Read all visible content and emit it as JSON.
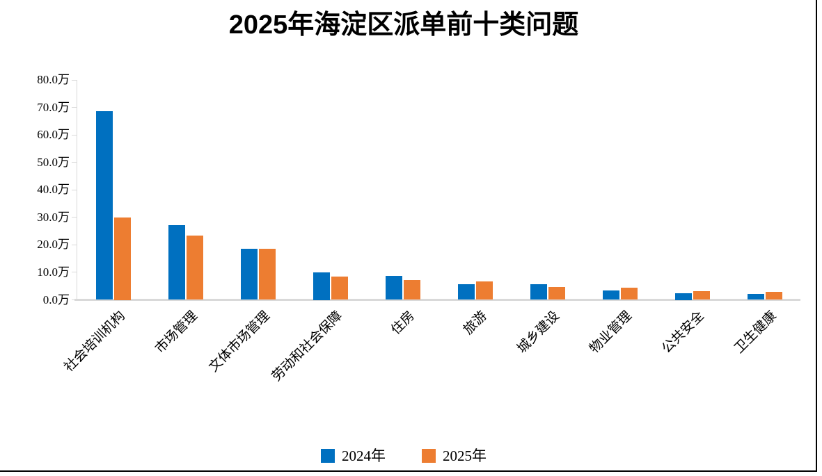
{
  "chart_data": {
    "type": "bar",
    "title": "2025年海淀区派单前十类问题",
    "unit": "万",
    "categories": [
      "社会培训机构",
      "市场管理",
      "文体市场管理",
      "劳动和社会保障",
      "住房",
      "旅游",
      "城乡建设",
      "物业管理",
      "公共安全",
      "卫生健康"
    ],
    "series": [
      {
        "name": "2024年",
        "color": "#0070C0",
        "values": [
          68.7,
          27.2,
          18.5,
          10.0,
          8.6,
          5.6,
          5.6,
          3.5,
          2.5,
          2.2
        ]
      },
      {
        "name": "2025年",
        "color": "#ED7D31",
        "values": [
          30.0,
          23.5,
          18.5,
          8.4,
          7.3,
          6.7,
          4.6,
          4.5,
          3.1,
          3.0
        ]
      }
    ],
    "ylim": [
      0,
      80
    ],
    "ytick_step": 10,
    "ytick_labels": [
      "0.0万",
      "10.0万",
      "20.0万",
      "30.0万",
      "40.0万",
      "50.0万",
      "60.0万",
      "70.0万",
      "80.0万"
    ],
    "legend_position": "bottom",
    "grid": false,
    "axis_line_color": "#D9D9D9"
  }
}
